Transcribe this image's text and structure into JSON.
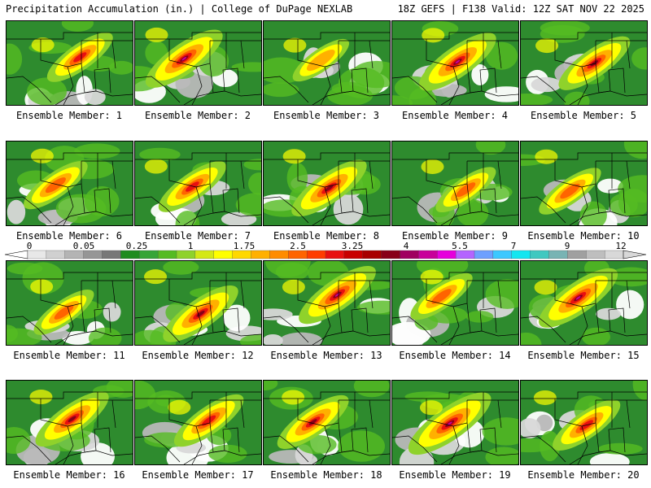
{
  "header": {
    "left": "Precipitation Accumulation (in.) | College of DuPage NEXLAB",
    "right": "18Z GEFS | F138 Valid: 12Z SAT NOV 22 2025"
  },
  "legend": {
    "tick_labels": [
      "0",
      "0.05",
      "0.25",
      "1",
      "1.75",
      "2.5",
      "3.25",
      "4",
      "5.5",
      "7",
      "9",
      "12"
    ],
    "colors": [
      "#e8e8e8",
      "#d0d0d0",
      "#b4b4b4",
      "#969696",
      "#787878",
      "#1e8c1e",
      "#37a537",
      "#55bb22",
      "#8fd22b",
      "#d4e816",
      "#ffff00",
      "#ffd800",
      "#ffb000",
      "#ff8c00",
      "#ff6400",
      "#ff3c00",
      "#e81010",
      "#c80000",
      "#a80000",
      "#880018",
      "#a00060",
      "#c8009a",
      "#e600dc",
      "#b464ff",
      "#6ea0ff",
      "#3cc8ff",
      "#14e6f0",
      "#40c8c0",
      "#78b4b4",
      "#a0a0a0",
      "#bebebe",
      "#d8d8d8"
    ]
  },
  "panels": [
    {
      "caption": "Ensemble Member: 1",
      "intensity": 0.55
    },
    {
      "caption": "Ensemble Member: 2",
      "intensity": 0.85
    },
    {
      "caption": "Ensemble Member: 3",
      "intensity": 0.3
    },
    {
      "caption": "Ensemble Member: 4",
      "intensity": 0.85
    },
    {
      "caption": "Ensemble Member: 5",
      "intensity": 0.7
    },
    {
      "caption": "Ensemble Member: 6",
      "intensity": 0.5
    },
    {
      "caption": "Ensemble Member: 7",
      "intensity": 0.6
    },
    {
      "caption": "Ensemble Member: 8",
      "intensity": 0.8
    },
    {
      "caption": "Ensemble Member: 9",
      "intensity": 0.4
    },
    {
      "caption": "Ensemble Member: 10",
      "intensity": 0.45
    },
    {
      "caption": "Ensemble Member: 11",
      "intensity": 0.4
    },
    {
      "caption": "Ensemble Member: 12",
      "intensity": 0.8
    },
    {
      "caption": "Ensemble Member: 13",
      "intensity": 0.85
    },
    {
      "caption": "Ensemble Member: 14",
      "intensity": 0.45
    },
    {
      "caption": "Ensemble Member: 15",
      "intensity": 0.9
    },
    {
      "caption": "Ensemble Member: 16",
      "intensity": 0.75
    },
    {
      "caption": "Ensemble Member: 17",
      "intensity": 0.65
    },
    {
      "caption": "Ensemble Member: 18",
      "intensity": 0.7
    },
    {
      "caption": "Ensemble Member: 19",
      "intensity": 1.0
    },
    {
      "caption": "Ensemble Member: 20",
      "intensity": 0.6
    }
  ]
}
